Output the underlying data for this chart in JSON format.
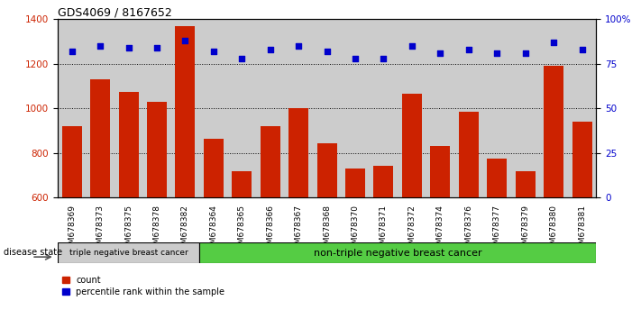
{
  "title": "GDS4069 / 8167652",
  "samples": [
    "GSM678369",
    "GSM678373",
    "GSM678375",
    "GSM678378",
    "GSM678382",
    "GSM678364",
    "GSM678365",
    "GSM678366",
    "GSM678367",
    "GSM678368",
    "GSM678370",
    "GSM678371",
    "GSM678372",
    "GSM678374",
    "GSM678376",
    "GSM678377",
    "GSM678379",
    "GSM678380",
    "GSM678381"
  ],
  "counts": [
    920,
    1130,
    1075,
    1030,
    1370,
    865,
    720,
    920,
    1000,
    845,
    730,
    745,
    1065,
    830,
    985,
    775,
    720,
    1190,
    940
  ],
  "percentiles": [
    82,
    85,
    84,
    84,
    88,
    82,
    78,
    83,
    85,
    82,
    78,
    78,
    85,
    81,
    83,
    81,
    81,
    87,
    83
  ],
  "ylim_left": [
    600,
    1400
  ],
  "ylim_right": [
    0,
    100
  ],
  "yticks_left": [
    600,
    800,
    1000,
    1200,
    1400
  ],
  "yticks_right": [
    0,
    25,
    50,
    75,
    100
  ],
  "ytick_labels_right": [
    "0",
    "25",
    "50",
    "75",
    "100%"
  ],
  "bar_color": "#cc2200",
  "dot_color": "#0000cc",
  "grid_color": "#000000",
  "group1_label": "triple negative breast cancer",
  "group2_label": "non-triple negative breast cancer",
  "group1_count": 5,
  "group2_count": 14,
  "disease_state_label": "disease state",
  "legend_count_label": "count",
  "legend_pct_label": "percentile rank within the sample",
  "bg_color": "#ffffff",
  "plot_bg_color": "#ffffff",
  "group1_bg": "#cccccc",
  "group2_bg": "#55cc44",
  "xticklabel_bg": "#cccccc",
  "arrow_color": "#555555"
}
